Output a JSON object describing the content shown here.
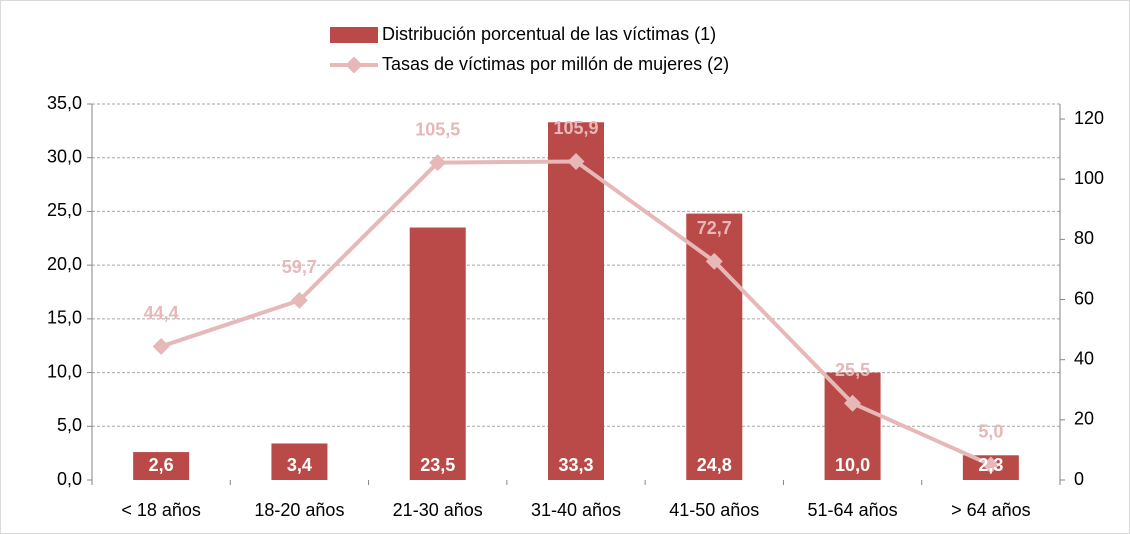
{
  "chart_data": {
    "type": "bar_line",
    "categories": [
      "< 18 años",
      "18-20 años",
      "21-30 años",
      "31-40 años",
      "41-50 años",
      "51-64 años",
      "> 64 años"
    ],
    "series": [
      {
        "name": "Distribución porcentual de las víctimas (1)",
        "type": "bar",
        "color": "#b94a48",
        "values": [
          2.6,
          3.4,
          23.5,
          33.3,
          24.8,
          10.0,
          2.3
        ],
        "value_labels": [
          "2,6",
          "3,4",
          "23,5",
          "33,3",
          "24,8",
          "10,0",
          "2,3"
        ]
      },
      {
        "name": "Tasas de víctimas por millón de mujeres (2)",
        "type": "line",
        "axis": "y2",
        "color": "#e6b8b7",
        "values": [
          44.4,
          59.7,
          105.5,
          105.9,
          72.7,
          25.5,
          5.0
        ],
        "value_labels": [
          "44,4",
          "59,7",
          "105,5",
          "105,9",
          "72,7",
          "25,5",
          "5,0"
        ]
      }
    ],
    "ylim": [
      0,
      35
    ],
    "yticks": [
      {
        "value": 0,
        "label": "0,0"
      },
      {
        "value": 5,
        "label": "5,0"
      },
      {
        "value": 10,
        "label": "10,0"
      },
      {
        "value": 15,
        "label": "15,0"
      },
      {
        "value": 20,
        "label": "20,0"
      },
      {
        "value": 25,
        "label": "25,0"
      },
      {
        "value": 30,
        "label": "30,0"
      },
      {
        "value": 35,
        "label": "35,0"
      }
    ],
    "y2lim": [
      0,
      125
    ],
    "y2ticks": [
      0,
      20,
      40,
      60,
      80,
      100,
      120
    ],
    "grid": true,
    "legend": "top"
  }
}
